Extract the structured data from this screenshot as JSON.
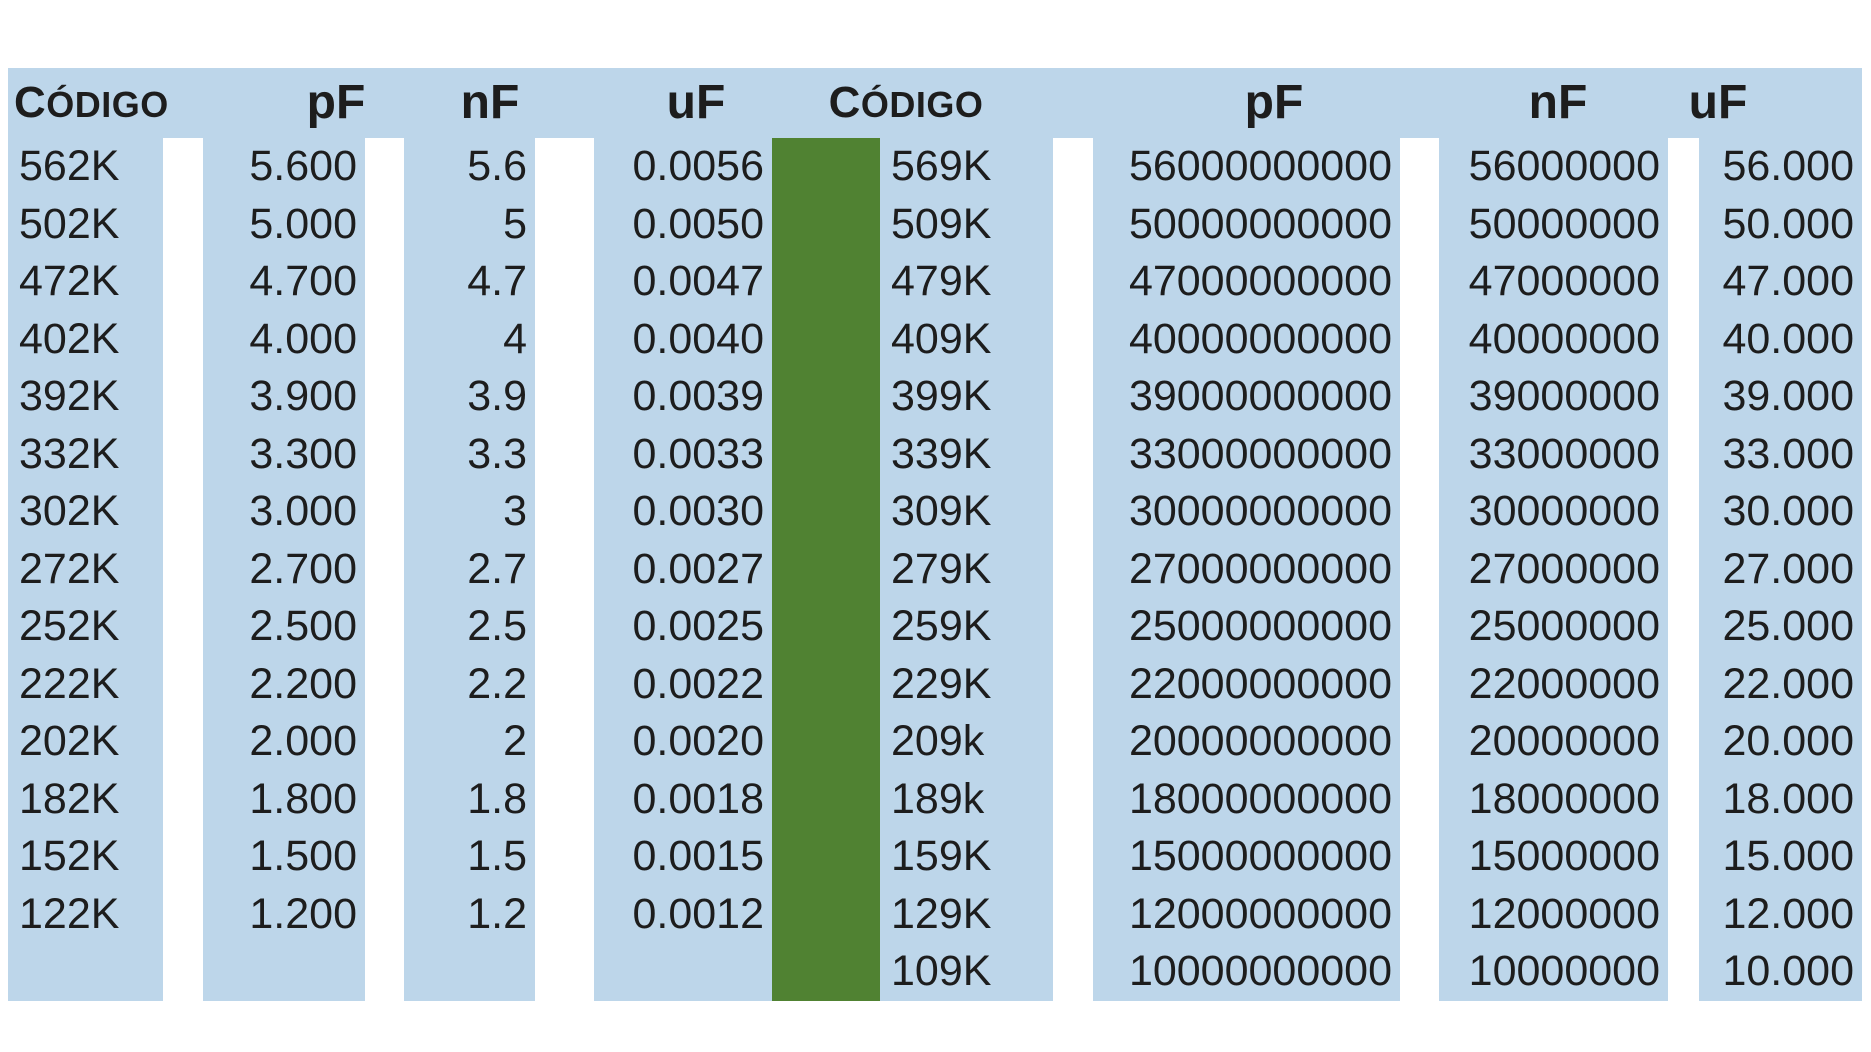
{
  "colors": {
    "cell_blue": "#BDD6EA",
    "separator_green": "#508232",
    "text": "#1D1D1D",
    "background": "#FFFFFF"
  },
  "chart_data": [
    {
      "type": "table",
      "title": "Capacitor code conversion (left block)",
      "columns": [
        "CÓDIGO",
        "pF",
        "nF",
        "uF"
      ],
      "rows": [
        [
          "562K",
          "5.600",
          "5.6",
          "0.0056"
        ],
        [
          "502K",
          "5.000",
          "5",
          "0.0050"
        ],
        [
          "472K",
          "4.700",
          "4.7",
          "0.0047"
        ],
        [
          "402K",
          "4.000",
          "4",
          "0.0040"
        ],
        [
          "392K",
          "3.900",
          "3.9",
          "0.0039"
        ],
        [
          "332K",
          "3.300",
          "3.3",
          "0.0033"
        ],
        [
          "302K",
          "3.000",
          "3",
          "0.0030"
        ],
        [
          "272K",
          "2.700",
          "2.7",
          "0.0027"
        ],
        [
          "252K",
          "2.500",
          "2.5",
          "0.0025"
        ],
        [
          "222K",
          "2.200",
          "2.2",
          "0.0022"
        ],
        [
          "202K",
          "2.000",
          "2",
          "0.0020"
        ],
        [
          "182K",
          "1.800",
          "1.8",
          "0.0018"
        ],
        [
          "152K",
          "1.500",
          "1.5",
          "0.0015"
        ],
        [
          "122K",
          "1.200",
          "1.2",
          "0.0012"
        ]
      ]
    },
    {
      "type": "table",
      "title": "Capacitor code conversion (right block)",
      "columns": [
        "CÓDIGO",
        "pF",
        "nF",
        "uF"
      ],
      "rows": [
        [
          "569K",
          "56000000000",
          "56000000",
          "56.000"
        ],
        [
          "509K",
          "50000000000",
          "50000000",
          "50.000"
        ],
        [
          "479K",
          "47000000000",
          "47000000",
          "47.000"
        ],
        [
          "409K",
          "40000000000",
          "40000000",
          "40.000"
        ],
        [
          "399K",
          "39000000000",
          "39000000",
          "39.000"
        ],
        [
          "339K",
          "33000000000",
          "33000000",
          "33.000"
        ],
        [
          "309K",
          "30000000000",
          "30000000",
          "30.000"
        ],
        [
          "279K",
          "27000000000",
          "27000000",
          "27.000"
        ],
        [
          "259K",
          "25000000000",
          "25000000",
          "25.000"
        ],
        [
          "229K",
          "22000000000",
          "22000000",
          "22.000"
        ],
        [
          "209k",
          "20000000000",
          "20000000",
          "20.000"
        ],
        [
          "189k",
          "18000000000",
          "18000000",
          "18.000"
        ],
        [
          "159K",
          "15000000000",
          "15000000",
          "15.000"
        ],
        [
          "129K",
          "12000000000",
          "12000000",
          "12.000"
        ],
        [
          "109K",
          "10000000000",
          "10000000",
          "10.000"
        ]
      ]
    }
  ]
}
